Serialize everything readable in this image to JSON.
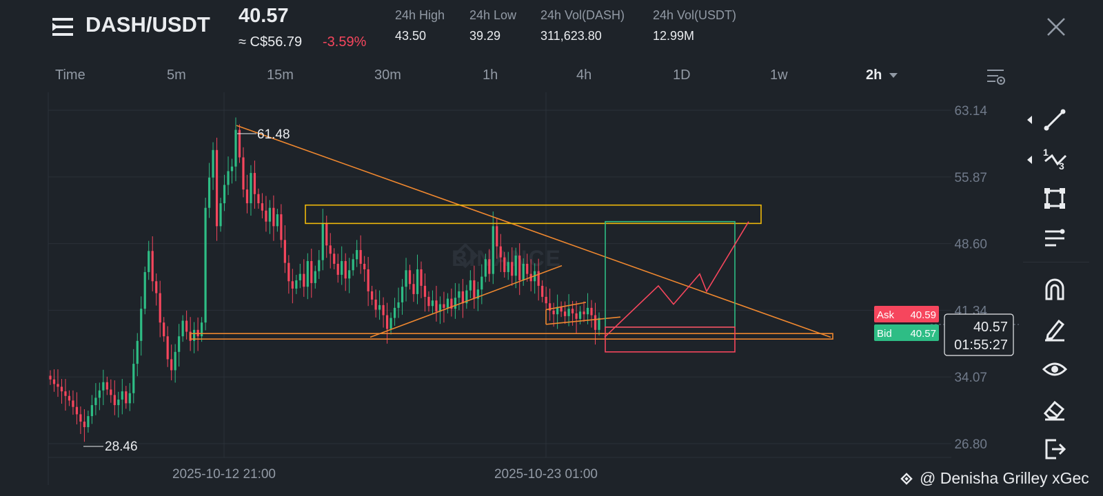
{
  "header": {
    "pair": "DASH/USDT",
    "last_price": "40.57",
    "converted_price": "≈ C$56.79",
    "change_percent": "-3.59%",
    "stats": [
      {
        "label": "24h High",
        "value": "43.50"
      },
      {
        "label": "24h Low",
        "value": "39.29"
      },
      {
        "label": "24h Vol(DASH)",
        "value": "311,623.80"
      },
      {
        "label": "24h Vol(USDT)",
        "value": "12.99M"
      }
    ]
  },
  "timeframes": [
    {
      "label": "Time",
      "active": false
    },
    {
      "label": "5m",
      "active": false
    },
    {
      "label": "15m",
      "active": false
    },
    {
      "label": "30m",
      "active": false
    },
    {
      "label": "1h",
      "active": false
    },
    {
      "label": "4h",
      "active": false
    },
    {
      "label": "1D",
      "active": false
    },
    {
      "label": "1w",
      "active": false
    },
    {
      "label": "2h",
      "active": true
    }
  ],
  "chart": {
    "y_ticks": [
      "63.14",
      "55.87",
      "48.60",
      "41.34",
      "34.07",
      "26.80"
    ],
    "x_ticks": [
      "2025-10-12 21:00",
      "2025-10-23 01:00"
    ],
    "high_label": "61.48",
    "low_label": "28.46",
    "watermark": "BINANCE",
    "ask_label": "Ask",
    "ask_value": "40.59",
    "bid_label": "Bid",
    "bid_value": "40.57",
    "current_price": "40.57",
    "countdown": "01:55:27"
  },
  "chart_data": {
    "type": "candlestick",
    "xlabel": "",
    "ylabel": "",
    "y_range": [
      26.0,
      64.5
    ],
    "x_ticks": [
      "2025-10-12 21:00",
      "2025-10-23 01:00"
    ],
    "close_series_approx": [
      33.8,
      33.3,
      33.0,
      32.5,
      32.0,
      31.5,
      30.8,
      30.0,
      29.2,
      28.6,
      29.8,
      31.0,
      31.8,
      32.6,
      33.5,
      32.7,
      32.1,
      31.0,
      31.6,
      32.5,
      31.2,
      32.3,
      35.5,
      38.0,
      41.5,
      45.5,
      47.8,
      44.5,
      43.2,
      40.0,
      38.5,
      36.0,
      34.8,
      36.8,
      38.5,
      40.2,
      39.0,
      38.0,
      39.2,
      38.5,
      40.0,
      52.5,
      55.8,
      58.8,
      50.5,
      53.0,
      55.0,
      56.5,
      57.0,
      61.0,
      58.0,
      54.5,
      53.0,
      56.3,
      54.0,
      53.0,
      52.2,
      51.0,
      52.5,
      50.5,
      51.8,
      49.0,
      46.5,
      44.5,
      43.7,
      44.6,
      45.3,
      43.9,
      46.7,
      44.3,
      45.6,
      46.8,
      50.8,
      48.4,
      47.5,
      46.4,
      45.2,
      46.7,
      44.8,
      45.7,
      46.9,
      47.9,
      46.4,
      45.8,
      43.4,
      42.5,
      41.4,
      41.9,
      40.8,
      39.3,
      40.5,
      41.6,
      42.2,
      43.9,
      45.7,
      44.2,
      43.1,
      45.8,
      44.0,
      42.8,
      41.8,
      42.4,
      41.2,
      42.0,
      41.6,
      42.6,
      41.5,
      42.7,
      43.4,
      42.1,
      43.5,
      44.6,
      42.6,
      43.6,
      45.0,
      46.9,
      45.3,
      50.5,
      48.3,
      47.1,
      45.5,
      46.6,
      45.1,
      47.3,
      44.6,
      46.4,
      45.3,
      44.5,
      45.6,
      44.0,
      42.8,
      42.1,
      41.3,
      40.9,
      41.7,
      41.2,
      40.7,
      41.5,
      41.0,
      40.4,
      41.2,
      40.9,
      41.6,
      40.8,
      39.2,
      40.5
    ],
    "drawings": {
      "descending_trendline": [
        [
          61.48,
          "start"
        ],
        [
          38.3,
          "end"
        ]
      ],
      "resistance_zone": [
        50.8,
        52.8
      ],
      "support_zone": [
        38.2,
        38.6
      ],
      "ascending_trendline_low": 38.4,
      "ascending_trendline_high": 45.8,
      "projection_target": 50.6
    },
    "annotations": {
      "high": 61.48,
      "low": 28.46,
      "ask": 40.59,
      "bid": 40.57,
      "last": 40.57
    },
    "colors": {
      "up": "#2ebd85",
      "down": "#f6465d",
      "trendline": "#f0882f",
      "zone": "#f0b90b",
      "target_box": "#2ebd85",
      "stop_box": "#f6465d",
      "projection": "#f6465d"
    },
    "grid": true,
    "legend": "none"
  }
}
